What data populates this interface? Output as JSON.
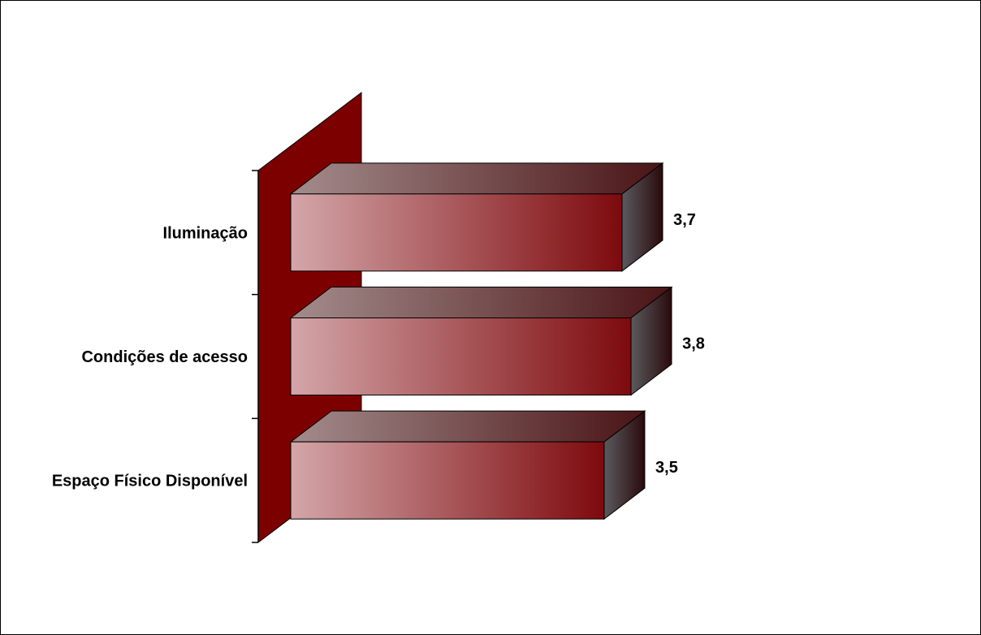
{
  "chart_data": {
    "type": "bar",
    "orientation": "horizontal",
    "style": "3d",
    "title": "",
    "xlabel": "",
    "ylabel": "",
    "categories": [
      "Espaço Físico Disponível",
      "Condições de acesso",
      "Iluminação"
    ],
    "values": [
      3.5,
      3.8,
      3.7
    ],
    "value_labels": [
      "3,5",
      "3,8",
      "3,7"
    ],
    "xlim": [
      0,
      5
    ],
    "grid": false,
    "legend": "none",
    "colors": {
      "bar_light": "#D4A6A9",
      "bar_dark": "#7D0A0D",
      "bar_top_light": "#A48C8C",
      "bar_top_dark": "#4A1416",
      "bar_side_light": "#5A5A5E",
      "bar_side_dark": "#2A0A0C",
      "back_wall": "#7D0000",
      "edge": "#000000"
    }
  }
}
